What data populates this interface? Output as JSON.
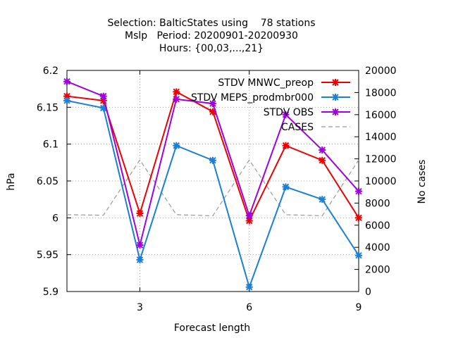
{
  "chart_data": {
    "type": "line",
    "title": [
      "Selection: BalticStates using    78 stations",
      "Mslp   Period: 20200901-20200930",
      "Hours: {00,03,...,21}"
    ],
    "xlabel": "Forecast length",
    "ylabel": "hPa",
    "y2label": "No cases",
    "xlim": [
      1,
      9
    ],
    "ylim": [
      5.9,
      6.2
    ],
    "y2lim": [
      0,
      20000
    ],
    "xticks": [
      "3",
      "6",
      "9"
    ],
    "xtick_values": [
      3,
      6,
      9
    ],
    "yticks": [
      "5.9",
      "5.95",
      "6",
      "6.05",
      "6.1",
      "6.15",
      "6.2"
    ],
    "ytick_values": [
      5.9,
      5.95,
      6.0,
      6.05,
      6.1,
      6.15,
      6.2
    ],
    "y2ticks": [
      "0",
      "2000",
      "4000",
      "6000",
      "8000",
      "10000",
      "12000",
      "14000",
      "16000",
      "18000",
      "20000"
    ],
    "y2tick_values": [
      0,
      2000,
      4000,
      6000,
      8000,
      10000,
      12000,
      14000,
      16000,
      18000,
      20000
    ],
    "grid": true,
    "legend_position": "top-right",
    "x": [
      1,
      2,
      3,
      4,
      5,
      6,
      7,
      8,
      9
    ],
    "series": [
      {
        "name": "STDV MNWC_preop",
        "color": "#ee0000",
        "axis": "y",
        "marker": "cross",
        "dash": "solid",
        "values": [
          6.165,
          6.159,
          6.006,
          6.171,
          6.144,
          5.996,
          6.098,
          6.078,
          6.0
        ]
      },
      {
        "name": "STDV MEPS_prodmbr000",
        "color": "#1a7fd6",
        "axis": "y",
        "marker": "cross",
        "dash": "solid",
        "values": [
          6.159,
          6.149,
          5.943,
          6.098,
          6.078,
          5.906,
          6.042,
          6.025,
          5.949
        ]
      },
      {
        "name": "STDV OBS",
        "color": "#a000e0",
        "axis": "y",
        "marker": "cross",
        "dash": "solid",
        "values": [
          6.185,
          6.165,
          5.963,
          6.161,
          6.155,
          6.003,
          6.14,
          6.092,
          6.036
        ]
      },
      {
        "name": "CASES",
        "color": "#999999",
        "axis": "y2",
        "marker": "none",
        "dash": "dashed",
        "values": [
          6950,
          6900,
          11900,
          6950,
          6850,
          11900,
          6950,
          6850,
          11900
        ]
      }
    ]
  }
}
